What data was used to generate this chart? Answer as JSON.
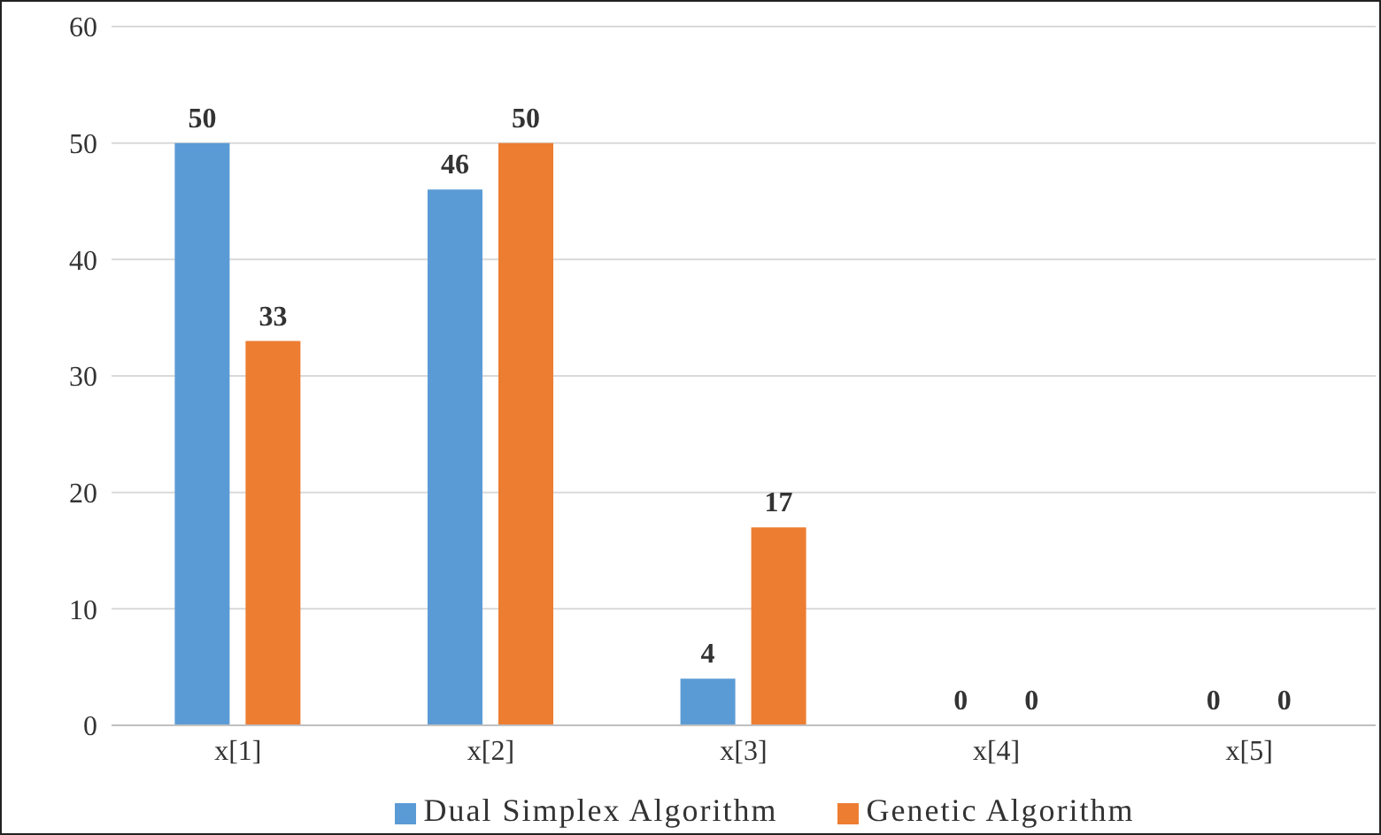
{
  "chart_data": {
    "type": "bar",
    "categories": [
      "x[1]",
      "x[2]",
      "x[3]",
      "x[4]",
      "x[5]"
    ],
    "series": [
      {
        "name": "Dual Simplex Algorithm",
        "color": "#5b9bd5",
        "values": [
          50,
          46,
          4,
          0,
          0
        ]
      },
      {
        "name": "Genetic Algorithm",
        "color": "#ed7d31",
        "values": [
          33,
          50,
          17,
          0,
          0
        ]
      }
    ],
    "ylim": [
      0,
      60
    ],
    "yticks": [
      0,
      10,
      20,
      30,
      40,
      50,
      60
    ],
    "grid": "y",
    "legend": "bottom",
    "data_labels": true
  }
}
